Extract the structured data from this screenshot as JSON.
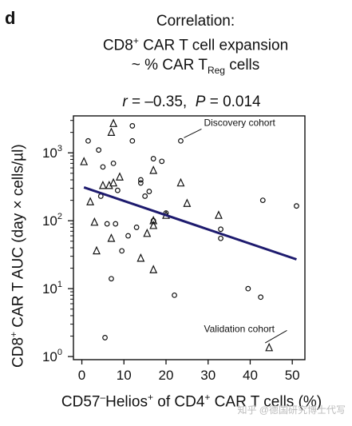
{
  "panel_letter": "d",
  "title": {
    "line1": "Correlation:",
    "line2_pre": "CD8",
    "line2_sup": "+",
    "line2_post": " CAR T cell expansion",
    "line3_pre": "~ % CAR T",
    "line3_sub": "Reg",
    "line3_post": " cells"
  },
  "stats": {
    "r_label": "r",
    "r_value": " = –0.35,",
    "p_label": "P",
    "p_value": " = 0.014"
  },
  "axes": {
    "ylabel_pre": "CD8",
    "ylabel_sup": "+",
    "ylabel_post": " CAR T AUC (day × cells/µl)",
    "xlabel_a": "CD57",
    "xlabel_a_sup": "–",
    "xlabel_b": "Helios",
    "xlabel_b_sup": "+",
    "xlabel_c": " of CD4",
    "xlabel_c_sup": "+",
    "xlabel_d": " CAR T cells (%)"
  },
  "watermark": "知乎 @德国研究博士代写",
  "chart_data": {
    "type": "scatter",
    "x_ticks": [
      "0",
      "10",
      "20",
      "30",
      "40",
      "50"
    ],
    "y_ticks": [
      {
        "base": "10",
        "exp": "0"
      },
      {
        "base": "10",
        "exp": "1"
      },
      {
        "base": "10",
        "exp": "2"
      },
      {
        "base": "10",
        "exp": "3"
      }
    ],
    "xlim": [
      -2,
      53
    ],
    "ylim": [
      0.9,
      3500
    ],
    "y_scale": "log",
    "grid": false,
    "series": [
      {
        "name": "Discovery cohort",
        "marker": "circle",
        "points": [
          [
            1.5,
            1500
          ],
          [
            4,
            1100
          ],
          [
            5,
            620
          ],
          [
            7.5,
            700
          ],
          [
            12,
            2500
          ],
          [
            12,
            1500
          ],
          [
            14,
            400
          ],
          [
            15,
            230
          ],
          [
            16,
            270
          ],
          [
            17,
            820
          ],
          [
            19,
            750
          ],
          [
            4.5,
            230
          ],
          [
            6,
            90
          ],
          [
            7,
            14
          ],
          [
            8,
            90
          ],
          [
            9.5,
            36
          ],
          [
            11,
            60
          ],
          [
            13,
            80
          ],
          [
            14,
            360
          ],
          [
            17,
            100
          ],
          [
            20,
            130
          ],
          [
            22,
            8
          ],
          [
            23.5,
            1500
          ],
          [
            33,
            75
          ],
          [
            33,
            55
          ],
          [
            39.5,
            10
          ],
          [
            42.5,
            7.5
          ],
          [
            43,
            200
          ],
          [
            51,
            165
          ],
          [
            5.5,
            1.9
          ],
          [
            8.5,
            280
          ]
        ]
      },
      {
        "name": "Validation cohort",
        "marker": "triangle",
        "points": [
          [
            0.5,
            740
          ],
          [
            2,
            190
          ],
          [
            3,
            95
          ],
          [
            3.5,
            36
          ],
          [
            5,
            330
          ],
          [
            6.5,
            330
          ],
          [
            7,
            2000
          ],
          [
            7.5,
            2700
          ],
          [
            7,
            55
          ],
          [
            9,
            440
          ],
          [
            14,
            28
          ],
          [
            15.5,
            65
          ],
          [
            17,
            550
          ],
          [
            17,
            100
          ],
          [
            17,
            85
          ],
          [
            17,
            19
          ],
          [
            23.5,
            360
          ],
          [
            25,
            180
          ],
          [
            32.5,
            120
          ],
          [
            44.5,
            1.35
          ],
          [
            7.5,
            360
          ],
          [
            20,
            120
          ]
        ]
      }
    ],
    "regression": {
      "x": [
        0.5,
        51
      ],
      "y": [
        310,
        27
      ]
    },
    "annotations": [
      {
        "text": "Discovery cohort",
        "x": 29,
        "y": 2500,
        "target_x": 23.5,
        "target_y": 1500
      },
      {
        "text": "Validation cohort",
        "x": 29,
        "y": 2.3,
        "target_x": 44.5,
        "target_y": 1.35
      }
    ]
  }
}
